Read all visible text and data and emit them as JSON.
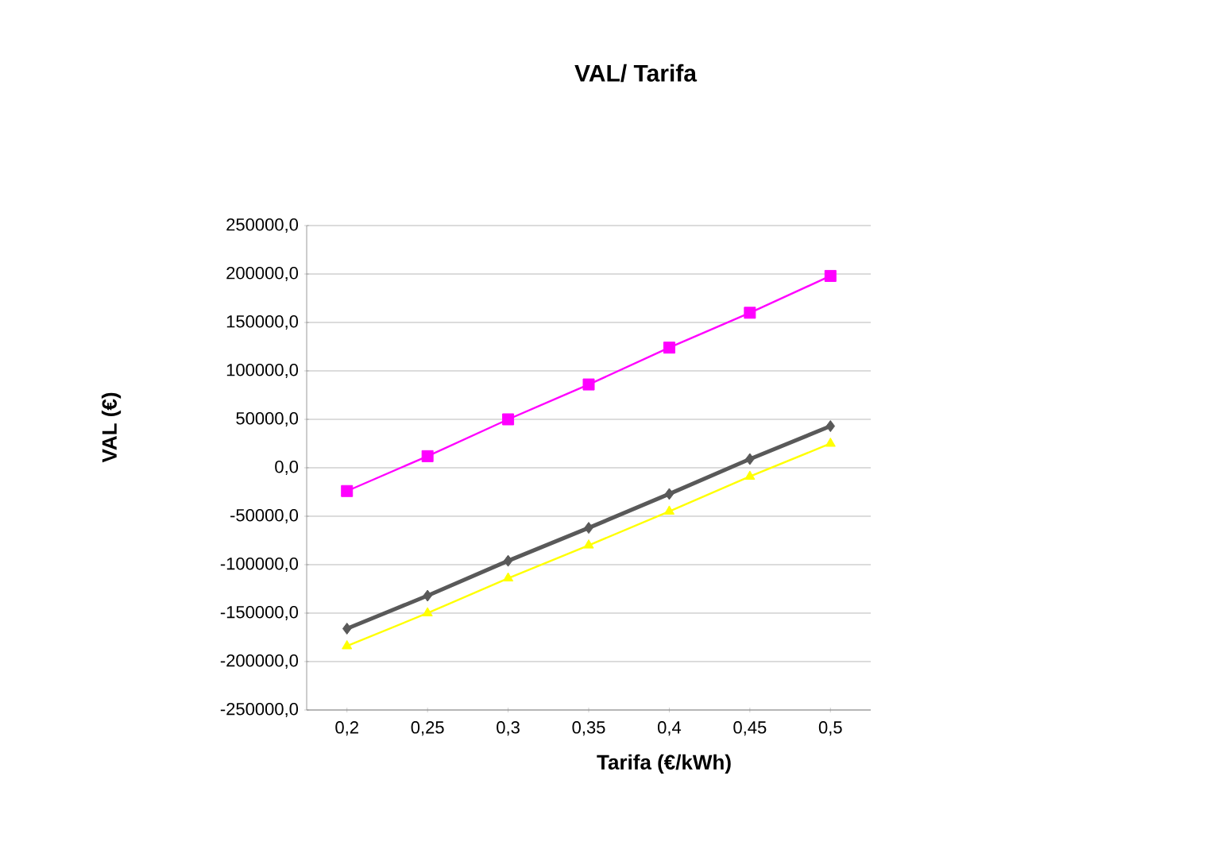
{
  "chart_data": {
    "type": "line",
    "title": "VAL/ Tarifa",
    "xlabel": "Tarifa (€/kWh)",
    "ylabel": "VAL (€)",
    "categories": [
      "0,2",
      "0,25",
      "0,3",
      "0,35",
      "0,4",
      "0,45",
      "0,5"
    ],
    "series": [
      {
        "color": "#595959",
        "marker": "diamond",
        "values": [
          -166000,
          -132000,
          -96000,
          -62000,
          -27000,
          9000,
          43000
        ]
      },
      {
        "color": "#ff00ff",
        "marker": "square",
        "values": [
          -24000,
          12000,
          50000,
          86000,
          124000,
          160000,
          198000
        ]
      },
      {
        "color": "#ffff00",
        "marker": "triangle",
        "values": [
          -184000,
          -150000,
          -114000,
          -80000,
          -45000,
          -9000,
          25000
        ]
      }
    ],
    "ylim": [
      -250000,
      250000
    ],
    "yticks": [
      {
        "value": -250000,
        "label": "-250000,0"
      },
      {
        "value": -200000,
        "label": "-200000,0"
      },
      {
        "value": -150000,
        "label": "-150000,0"
      },
      {
        "value": -100000,
        "label": "-100000,0"
      },
      {
        "value": -50000,
        "label": "-50000,0"
      },
      {
        "value": 0,
        "label": "0,0"
      },
      {
        "value": 50000,
        "label": "50000,0"
      },
      {
        "value": 100000,
        "label": "100000,0"
      },
      {
        "value": 150000,
        "label": "150000,0"
      },
      {
        "value": 200000,
        "label": "200000,0"
      },
      {
        "value": 250000,
        "label": "250000,0"
      }
    ],
    "grid": "y",
    "legend": false
  }
}
